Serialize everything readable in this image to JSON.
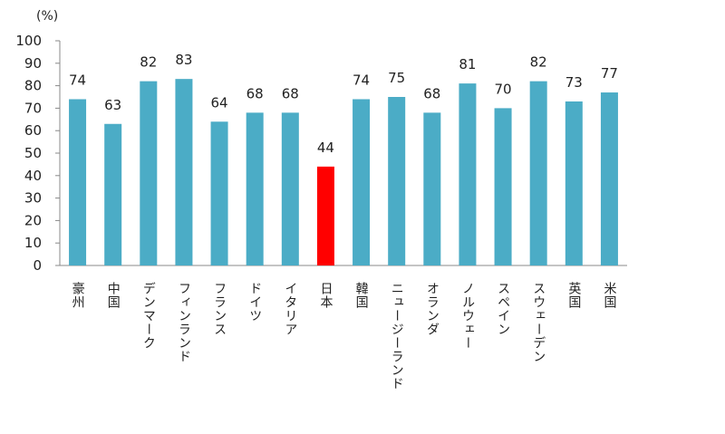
{
  "chart_data": {
    "type": "bar",
    "unit_label": "(%)",
    "categories": [
      "豪州",
      "中国",
      "デンマーク",
      "フィンランド",
      "フランス",
      "ドイツ",
      "イタリア",
      "日本",
      "韓国",
      "ニュージーランド",
      "オランダ",
      "ノルウェー",
      "スペイン",
      "スウェーデン",
      "英国",
      "米国"
    ],
    "values": [
      74,
      63,
      82,
      83,
      64,
      68,
      68,
      44,
      74,
      75,
      68,
      81,
      70,
      82,
      73,
      77
    ],
    "ylim": [
      0,
      100
    ],
    "yticks": [
      0,
      10,
      20,
      30,
      40,
      50,
      60,
      70,
      80,
      90,
      100
    ],
    "grid": false,
    "legend": "none",
    "colors": {
      "default": "#4BACC6",
      "highlight": "#FF0000",
      "highlight_category": "日本"
    }
  }
}
